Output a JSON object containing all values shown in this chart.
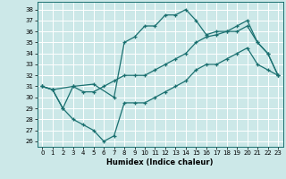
{
  "xlabel": "Humidex (Indice chaleur)",
  "bg_color": "#cce8e8",
  "grid_color": "#ffffff",
  "line_color": "#1a7070",
  "xlim": [
    -0.5,
    23.5
  ],
  "ylim": [
    25.5,
    38.7
  ],
  "yticks": [
    26,
    27,
    28,
    29,
    30,
    31,
    32,
    33,
    34,
    35,
    36,
    37,
    38
  ],
  "xticks": [
    0,
    1,
    2,
    3,
    4,
    5,
    6,
    7,
    8,
    9,
    10,
    11,
    12,
    13,
    14,
    15,
    16,
    17,
    18,
    19,
    20,
    21,
    22,
    23
  ],
  "series": [
    {
      "x": [
        0,
        1,
        3,
        5,
        7,
        8,
        9,
        10,
        11,
        12,
        13,
        14,
        15,
        16,
        17,
        18,
        19,
        20,
        21,
        22,
        23
      ],
      "y": [
        31,
        30.7,
        31.0,
        31.2,
        30.0,
        35.0,
        35.5,
        36.5,
        36.5,
        37.5,
        37.5,
        38.0,
        37.0,
        35.7,
        36.0,
        36.0,
        36.5,
        37.0,
        35.0,
        34.0,
        32.0
      ]
    },
    {
      "x": [
        0,
        1,
        2,
        3,
        4,
        5,
        6,
        7,
        8,
        9,
        10,
        11,
        12,
        13,
        14,
        15,
        16,
        17,
        18,
        19,
        20,
        21,
        22,
        23
      ],
      "y": [
        31,
        30.7,
        29.0,
        31.0,
        30.5,
        30.5,
        31.0,
        31.5,
        32.0,
        32.0,
        32.0,
        32.5,
        33.0,
        33.5,
        34.0,
        35.0,
        35.5,
        35.7,
        36.0,
        36.0,
        36.5,
        35.0,
        34.0,
        32.0
      ]
    },
    {
      "x": [
        0,
        1,
        2,
        3,
        4,
        5,
        6,
        7,
        8,
        9,
        10,
        11,
        12,
        13,
        14,
        15,
        16,
        17,
        18,
        19,
        20,
        21,
        22,
        23
      ],
      "y": [
        31,
        30.7,
        29.0,
        28.0,
        27.5,
        27.0,
        26.0,
        26.5,
        29.5,
        29.5,
        29.5,
        30.0,
        30.5,
        31.0,
        31.5,
        32.5,
        33.0,
        33.0,
        33.5,
        34.0,
        34.5,
        33.0,
        32.5,
        32.0
      ]
    }
  ]
}
